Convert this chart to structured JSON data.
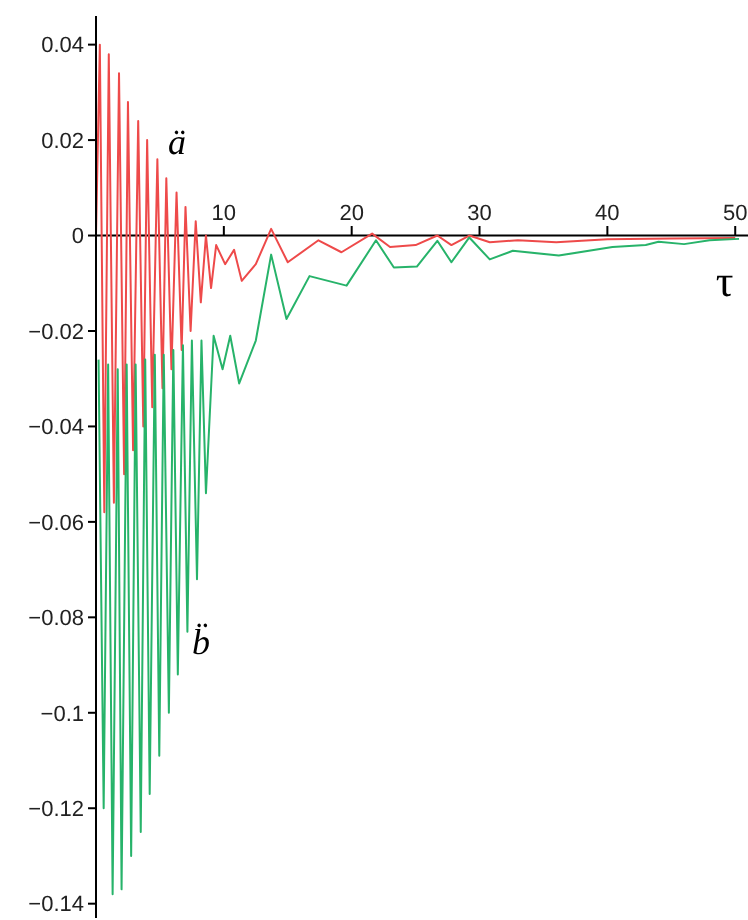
{
  "chart_data": {
    "type": "line",
    "xlabel": "τ",
    "xlim": [
      0,
      51
    ],
    "xticks": [
      10,
      20,
      30,
      40,
      50
    ],
    "ylim": [
      -0.143,
      0.046
    ],
    "yticks": [
      {
        "value": -0.14,
        "label": "−0.14"
      },
      {
        "value": -0.12,
        "label": "−0.12"
      },
      {
        "value": -0.1,
        "label": "−0.1"
      },
      {
        "value": -0.08,
        "label": "−0.08"
      },
      {
        "value": -0.06,
        "label": "−0.06"
      },
      {
        "value": -0.04,
        "label": "−0.04"
      },
      {
        "value": -0.02,
        "label": "−0.02"
      },
      0,
      0.02,
      0.04
    ],
    "marker": "none",
    "line_style": "solid",
    "annotations": [
      "ä",
      "b̈"
    ],
    "series": [
      {
        "color": "#ee4a4a",
        "x": [
          0,
          0.3,
          0.65,
          1.0,
          1.4,
          1.8,
          2.2,
          2.5,
          2.9,
          3.3,
          3.7,
          4.0,
          4.4,
          4.8,
          5.2,
          5.5,
          5.9,
          6.3,
          6.7,
          7.0,
          7.4,
          7.8,
          8.2,
          8.6,
          9.0,
          9.4,
          10.1,
          10.8,
          11.4,
          12.5,
          13.7,
          15.0,
          17.4,
          19.2,
          21.6,
          23.0,
          25.0,
          26.7,
          27.8,
          29.2,
          30.8,
          33,
          36,
          40,
          45,
          50
        ],
        "values": [
          0,
          0.04,
          -0.058,
          0.038,
          -0.056,
          0.034,
          -0.05,
          0.028,
          -0.045,
          0.024,
          -0.04,
          0.02,
          -0.036,
          0.016,
          -0.032,
          0.012,
          -0.028,
          0.009,
          -0.024,
          0.006,
          -0.02,
          0.003,
          -0.014,
          0,
          -0.011,
          -0.002,
          -0.006,
          -0.003,
          -0.0095,
          -0.006,
          0.0014,
          -0.0056,
          -0.001,
          -0.0035,
          0.0004,
          -0.0024,
          -0.002,
          0,
          -0.002,
          0,
          -0.0014,
          -0.001,
          -0.0014,
          -0.0008,
          -0.0006,
          -0.0005
        ]
      },
      {
        "color": "#27b36a",
        "x": [
          0.2,
          0.6,
          0.95,
          1.3,
          1.7,
          2.0,
          2.4,
          2.75,
          3.1,
          3.5,
          3.85,
          4.2,
          4.6,
          4.95,
          5.3,
          5.7,
          6.05,
          6.4,
          6.8,
          7.15,
          7.5,
          7.9,
          8.25,
          8.6,
          9.2,
          9.9,
          10.5,
          11.2,
          12.5,
          13.7,
          14.9,
          16.7,
          19.6,
          21.9,
          23.3,
          25.1,
          26.7,
          27.8,
          29.2,
          30.8,
          32.6,
          36.2,
          40.4,
          43,
          44,
          46,
          48,
          50.3
        ],
        "values": [
          -0.026,
          -0.12,
          -0.027,
          -0.138,
          -0.028,
          -0.137,
          -0.027,
          -0.13,
          -0.027,
          -0.125,
          -0.026,
          -0.117,
          -0.025,
          -0.109,
          -0.025,
          -0.1,
          -0.024,
          -0.092,
          -0.023,
          -0.083,
          -0.022,
          -0.072,
          -0.022,
          -0.054,
          -0.021,
          -0.028,
          -0.021,
          -0.031,
          -0.022,
          -0.004,
          -0.0175,
          -0.0085,
          -0.0105,
          -0.001,
          -0.0067,
          -0.0065,
          -0.0011,
          -0.0056,
          -0.0004,
          -0.005,
          -0.0032,
          -0.0042,
          -0.0024,
          -0.002,
          -0.0013,
          -0.0018,
          -0.001,
          -0.0007
        ]
      }
    ]
  }
}
